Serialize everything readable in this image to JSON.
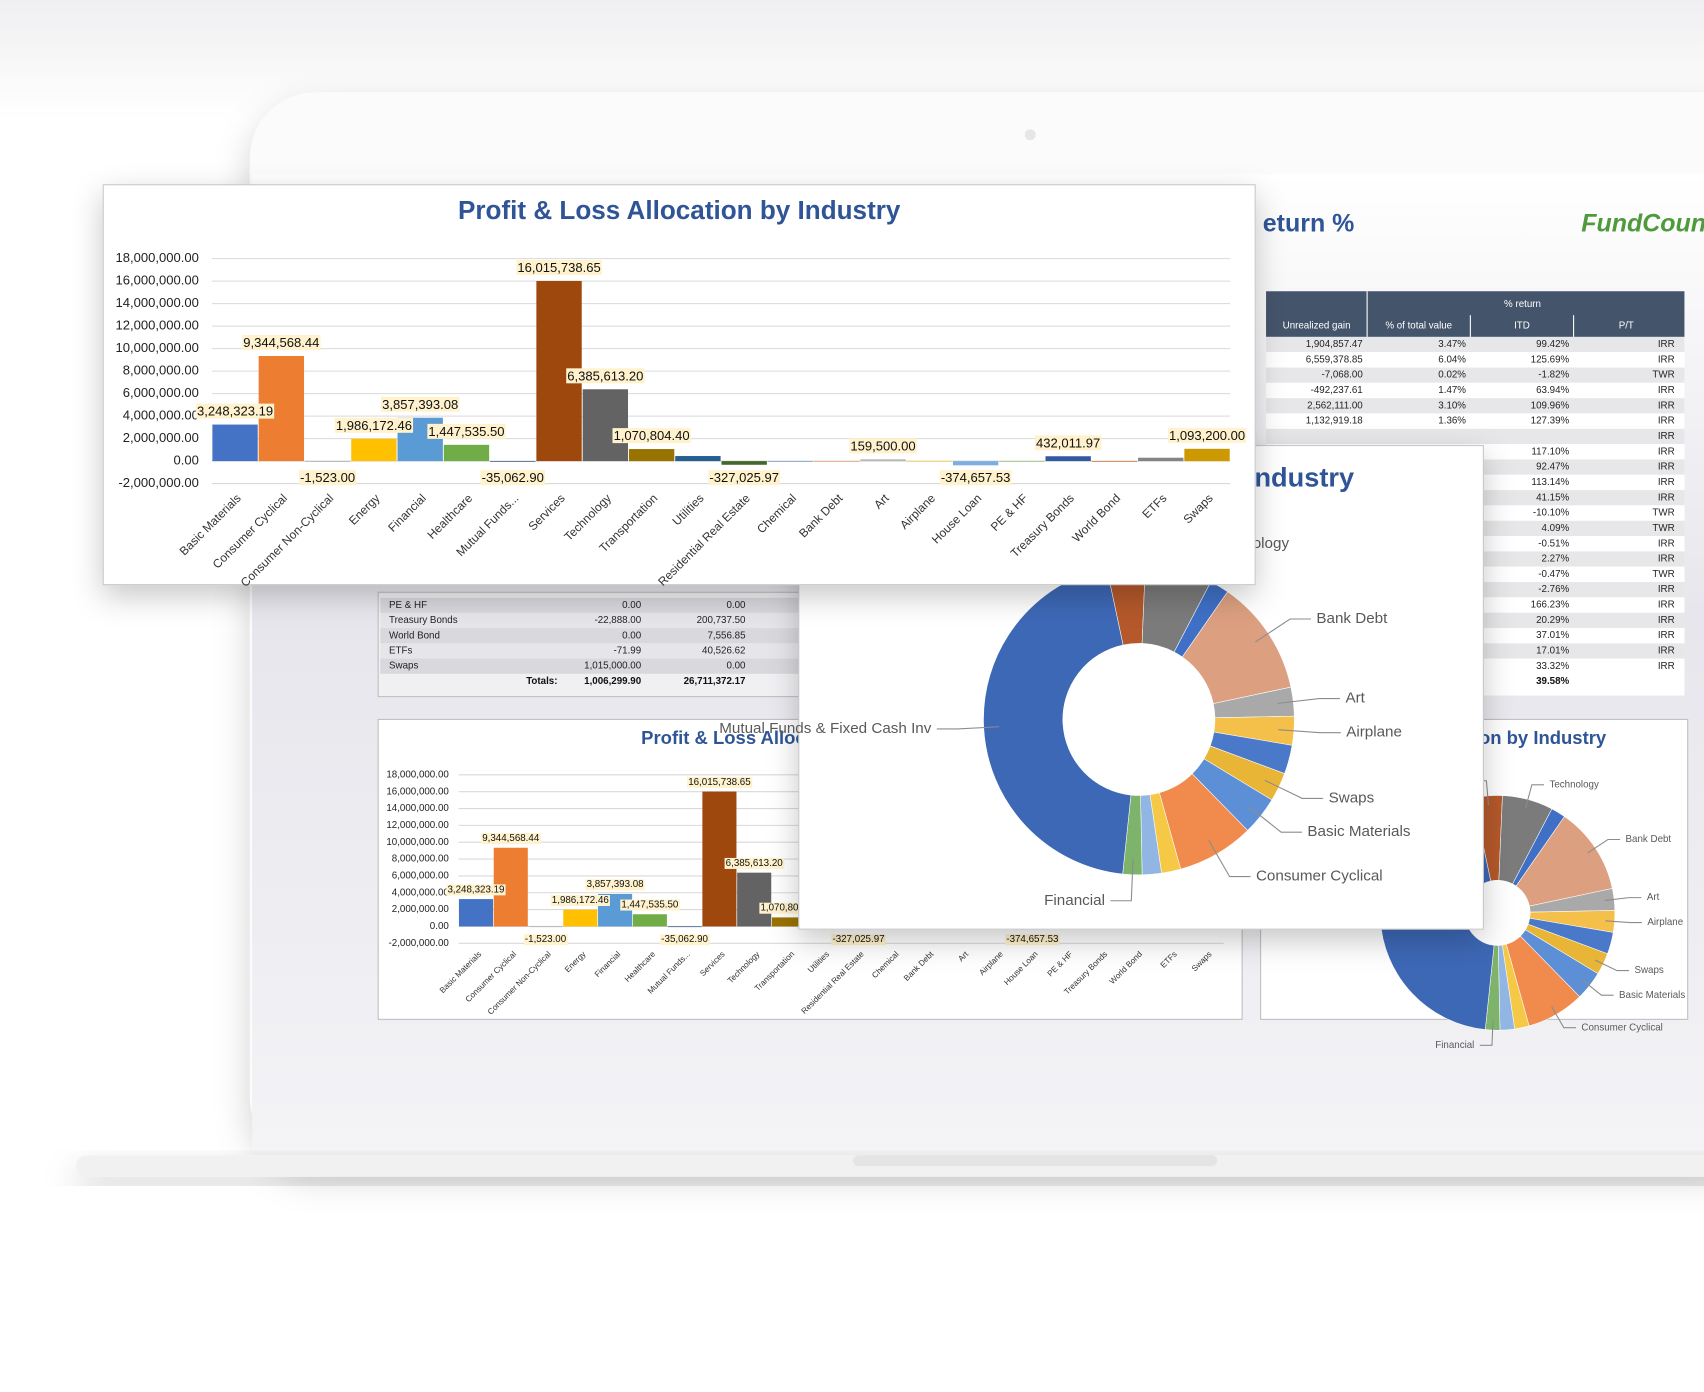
{
  "chart_data": [
    {
      "type": "bar",
      "title": "Profit & Loss Allocation by Industry",
      "categories": [
        "Basic Materials",
        "Consumer Cyclical",
        "Consumer Non-Cyclical",
        "Energy",
        "Financial",
        "Healthcare",
        "Mutual Funds...",
        "Services",
        "Technology",
        "Transportation",
        "Utilities",
        "Residential Real Estate",
        "Chemical",
        "Bank Debt",
        "Art",
        "Airplane",
        "House Loan",
        "PE & HF",
        "Treasury Bonds",
        "World Bond",
        "ETFs",
        "Swaps"
      ],
      "values": [
        3248323.19,
        9344568.44,
        -1523,
        1986172.46,
        3857393.08,
        1447535.5,
        -35062.9,
        16015738.65,
        6385613.2,
        1070804.4,
        450000,
        -327025.97,
        0,
        0,
        159500,
        0,
        -374657.53,
        0,
        432011.97,
        0,
        300000,
        1093200
      ],
      "value_labels": [
        "3,248,323.19",
        "9,344,568.44",
        "-1,523.00",
        "1,986,172.46",
        "3,857,393.08",
        "1,447,535.50",
        "-35,062.90",
        "16,015,738.65",
        "6,385,613.20",
        "1,070,804.40",
        null,
        "-327,025.97",
        null,
        null,
        "159,500.00",
        null,
        "-374,657.53",
        null,
        "432,011.97",
        null,
        null,
        "1,093,200.00"
      ],
      "colors": [
        "#4472c4",
        "#ed7d31",
        "#a5a5a5",
        "#ffc000",
        "#5b9bd5",
        "#70ad47",
        "#264478",
        "#9e480e",
        "#636363",
        "#997300",
        "#255e91",
        "#43682b",
        "#698ed0",
        "#f1975a",
        "#b7b7b7",
        "#ffcd33",
        "#7cafdd",
        "#8cc168",
        "#335aa1",
        "#d26012",
        "#848484",
        "#cc9a00"
      ],
      "ylim": [
        -2000000,
        18000000
      ],
      "yticks": [
        {
          "value": -2000000,
          "label": "-2,000,000.00"
        },
        {
          "value": 0,
          "label": "0.00"
        },
        {
          "value": 2000000,
          "label": "2,000,000.00"
        },
        {
          "value": 4000000,
          "label": "4,000,000.00"
        },
        {
          "value": 6000000,
          "label": "6,000,000.00"
        },
        {
          "value": 8000000,
          "label": "8,000,000.00"
        },
        {
          "value": 10000000,
          "label": "10,000,000.00"
        },
        {
          "value": 12000000,
          "label": "12,000,000.00"
        },
        {
          "value": 14000000,
          "label": "14,000,000.00"
        },
        {
          "value": 16000000,
          "label": "16,000,000.00"
        },
        {
          "value": 18000000,
          "label": "18,000,000.00"
        }
      ],
      "grid": true
    },
    {
      "type": "pie",
      "donut": true,
      "title": "Profit & Loss Allocation by Industry",
      "categories": [
        "Services",
        "Technology",
        null,
        "Bank Debt",
        "Art",
        "Airplane",
        null,
        "Swaps",
        "Basic Materials",
        "Consumer Cyclical",
        null,
        null,
        "Financial",
        "Mutual Funds & Fixed Cash Inv"
      ],
      "values": [
        4,
        7,
        2,
        12,
        3,
        3,
        3,
        3,
        4,
        8,
        2,
        2,
        2,
        45
      ],
      "colors": [
        "#b5582b",
        "#7b7b7b",
        "#3f70c6",
        "#dc9f80",
        "#a9a9a9",
        "#f4c04a",
        "#4b79c9",
        "#e9b536",
        "#5d8fd7",
        "#f08a4d",
        "#f5c845",
        "#92b6e4",
        "#7db36a",
        "#3d68b6"
      ]
    }
  ],
  "report_title": "eturn %",
  "logo": "FundCount",
  "left_table": {
    "rows": [
      [
        "PE & HF",
        "0.00",
        "0.00"
      ],
      [
        "Treasury Bonds",
        "-22,888.00",
        "200,737.50"
      ],
      [
        "World Bond",
        "0.00",
        "7,556.85"
      ],
      [
        "ETFs",
        "-71.99",
        "40,526.62"
      ],
      [
        "Swaps",
        "1,015,000.00",
        "0.00"
      ]
    ],
    "totals": {
      "label": "Totals:",
      "values": [
        "1,006,299.90",
        "26,711,372.17"
      ]
    }
  },
  "right_table": {
    "group_header": "% return",
    "headers": [
      "Unrealized gain",
      "% of total value",
      "ITD",
      "P/T"
    ],
    "rows": [
      [
        "1,904,857.47",
        "3.47%",
        "99.42%",
        "IRR"
      ],
      [
        "6,559,378.85",
        "6.04%",
        "125.69%",
        "IRR"
      ],
      [
        "-7,068.00",
        "0.02%",
        "-1.82%",
        "TWR"
      ],
      [
        "-492,237.61",
        "1.47%",
        "63.94%",
        "IRR"
      ],
      [
        "2,562,111.00",
        "3.10%",
        "109.96%",
        "IRR"
      ],
      [
        "1,132,919.18",
        "1.36%",
        "127.39%",
        "IRR"
      ],
      [
        null,
        null,
        null,
        "IRR"
      ],
      [
        null,
        null,
        "117.10%",
        "IRR"
      ],
      [
        null,
        null,
        "92.47%",
        "IRR"
      ],
      [
        null,
        null,
        "113.14%",
        "IRR"
      ],
      [
        null,
        null,
        "41.15%",
        "IRR"
      ],
      [
        null,
        null,
        "-10.10%",
        "TWR"
      ],
      [
        null,
        null,
        "4.09%",
        "TWR"
      ],
      [
        null,
        null,
        "-0.51%",
        "IRR"
      ],
      [
        null,
        null,
        "2.27%",
        "IRR"
      ],
      [
        null,
        null,
        "-0.47%",
        "TWR"
      ],
      [
        null,
        null,
        "-2.76%",
        "IRR"
      ],
      [
        null,
        null,
        "166.23%",
        "IRR"
      ],
      [
        null,
        null,
        "20.29%",
        "IRR"
      ],
      [
        null,
        null,
        "37.01%",
        "IRR"
      ],
      [
        null,
        null,
        "17.01%",
        "IRR"
      ],
      [
        null,
        null,
        "33.32%",
        "IRR"
      ]
    ],
    "totals": [
      null,
      null,
      "39.58%",
      null
    ]
  }
}
